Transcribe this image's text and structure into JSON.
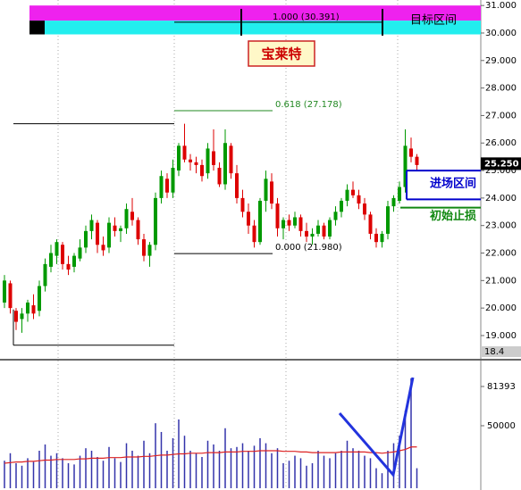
{
  "chart_data": {
    "type": "candlestick",
    "title": "宝莱特",
    "ylim": [
      18.22,
      31.2
    ],
    "yticks": [
      {
        "value": 19,
        "label": "19.000"
      },
      {
        "value": 20,
        "label": "20.000"
      },
      {
        "value": 21,
        "label": "21.000"
      },
      {
        "value": 22,
        "label": "22.000"
      },
      {
        "value": 23,
        "label": "23.000"
      },
      {
        "value": 24,
        "label": "24.000"
      },
      {
        "value": 25,
        "label": "25.000"
      },
      {
        "value": 26,
        "label": "26.000"
      },
      {
        "value": 27,
        "label": "27.000"
      },
      {
        "value": 28,
        "label": "28.000"
      },
      {
        "value": 29,
        "label": "29.000"
      },
      {
        "value": 30,
        "label": "30.000"
      },
      {
        "value": 31,
        "label": "31.000"
      }
    ],
    "up_color": "#009900",
    "down_color": "#dd0000",
    "candles": [
      [
        20.2,
        21.2,
        20.0,
        21.0
      ],
      [
        20.9,
        21.0,
        19.8,
        20.0
      ],
      [
        19.9,
        20.0,
        19.2,
        19.5
      ],
      [
        19.6,
        20.0,
        19.1,
        19.8
      ],
      [
        19.8,
        20.3,
        19.5,
        20.2
      ],
      [
        20.1,
        20.5,
        19.6,
        19.8
      ],
      [
        19.9,
        21.0,
        19.7,
        20.8
      ],
      [
        20.8,
        21.8,
        20.6,
        21.6
      ],
      [
        21.5,
        22.3,
        21.3,
        22.0
      ],
      [
        21.9,
        22.5,
        21.6,
        22.4
      ],
      [
        22.3,
        22.4,
        21.4,
        21.6
      ],
      [
        21.6,
        21.9,
        21.2,
        21.4
      ],
      [
        21.5,
        22.0,
        21.3,
        21.9
      ],
      [
        21.8,
        22.5,
        21.7,
        22.2
      ],
      [
        22.2,
        23.0,
        22.0,
        22.8
      ],
      [
        22.8,
        23.4,
        22.5,
        23.2
      ],
      [
        23.1,
        23.2,
        22.0,
        22.3
      ],
      [
        22.3,
        22.6,
        21.9,
        22.1
      ],
      [
        22.2,
        23.3,
        22.0,
        23.1
      ],
      [
        23.0,
        23.3,
        22.6,
        22.8
      ],
      [
        22.8,
        23.0,
        22.4,
        22.9
      ],
      [
        22.9,
        23.8,
        22.7,
        23.6
      ],
      [
        23.5,
        24.0,
        23.0,
        23.2
      ],
      [
        23.2,
        23.3,
        22.3,
        22.5
      ],
      [
        22.5,
        22.7,
        21.7,
        21.9
      ],
      [
        21.9,
        22.4,
        21.5,
        22.3
      ],
      [
        22.3,
        24.2,
        22.1,
        24.0
      ],
      [
        24.0,
        25.0,
        23.8,
        24.8
      ],
      [
        24.7,
        24.9,
        24.0,
        24.2
      ],
      [
        24.2,
        25.4,
        24.0,
        25.1
      ],
      [
        25.0,
        26.0,
        24.8,
        25.9
      ],
      [
        25.9,
        26.7,
        25.3,
        25.4
      ],
      [
        25.4,
        25.6,
        25.0,
        25.3
      ],
      [
        25.3,
        25.5,
        24.9,
        25.2
      ],
      [
        25.2,
        25.4,
        24.6,
        24.8
      ],
      [
        24.9,
        26.0,
        24.7,
        25.8
      ],
      [
        25.7,
        26.5,
        25.0,
        25.2
      ],
      [
        25.1,
        25.3,
        24.4,
        24.5
      ],
      [
        24.5,
        26.5,
        24.3,
        26.0
      ],
      [
        25.9,
        26.0,
        24.7,
        24.9
      ],
      [
        24.9,
        25.2,
        23.8,
        24.0
      ],
      [
        24.0,
        24.3,
        23.3,
        23.5
      ],
      [
        23.5,
        23.8,
        22.7,
        23.0
      ],
      [
        23.0,
        23.2,
        22.2,
        22.4
      ],
      [
        22.4,
        24.0,
        22.3,
        23.9
      ],
      [
        23.9,
        25.0,
        23.5,
        24.7
      ],
      [
        24.6,
        24.9,
        23.6,
        23.8
      ],
      [
        23.8,
        24.0,
        22.6,
        22.9
      ],
      [
        22.9,
        23.3,
        22.5,
        23.2
      ],
      [
        23.2,
        23.4,
        22.8,
        23.0
      ],
      [
        23.0,
        23.5,
        22.9,
        23.3
      ],
      [
        23.3,
        23.4,
        22.6,
        22.8
      ],
      [
        22.8,
        23.1,
        22.4,
        22.6
      ],
      [
        22.6,
        22.9,
        22.3,
        22.7
      ],
      [
        22.7,
        23.2,
        22.6,
        23.0
      ],
      [
        23.0,
        23.1,
        22.5,
        22.6
      ],
      [
        22.6,
        23.3,
        22.5,
        23.2
      ],
      [
        23.2,
        23.7,
        23.0,
        23.5
      ],
      [
        23.5,
        24.0,
        23.3,
        23.9
      ],
      [
        23.9,
        24.5,
        23.7,
        24.3
      ],
      [
        24.3,
        24.6,
        24.0,
        24.1
      ],
      [
        24.1,
        24.3,
        23.6,
        23.8
      ],
      [
        23.8,
        24.0,
        23.2,
        23.4
      ],
      [
        23.4,
        23.5,
        22.5,
        22.7
      ],
      [
        22.7,
        22.9,
        22.2,
        22.4
      ],
      [
        22.4,
        22.8,
        22.2,
        22.7
      ],
      [
        22.7,
        23.9,
        22.5,
        23.7
      ],
      [
        23.7,
        24.1,
        23.5,
        24.0
      ],
      [
        23.9,
        24.6,
        23.8,
        24.4
      ],
      [
        24.4,
        26.5,
        24.2,
        25.9
      ],
      [
        25.8,
        26.2,
        25.3,
        25.5
      ],
      [
        25.5,
        25.6,
        25.0,
        25.2
      ]
    ],
    "last_price": 25.25,
    "last_price_label": "25.250",
    "bottom_label": "18.4",
    "target_zone": {
      "label": "目标区间",
      "top": 31.0,
      "mid": 30.45,
      "bottom": 29.95
    },
    "fib_levels": [
      {
        "value": 30.391,
        "label": "1.000 (30.391)",
        "color": "#000000"
      },
      {
        "value": 27.178,
        "label": "0.618 (27.178)",
        "color": "#228822"
      },
      {
        "value": 21.98,
        "label": "0.000 (21.980)",
        "color": "#000000"
      }
    ],
    "reference_lines": [
      26.7,
      18.65
    ],
    "entry_zone": {
      "label": "进场区间",
      "top": 25.0,
      "bottom": 23.95,
      "color": "#0000cc"
    },
    "stop_loss": {
      "label": "初始止损",
      "value": 23.65,
      "color": "#118811"
    },
    "volume": {
      "vlim": [
        0,
        101400
      ],
      "vticks": [
        {
          "value": 81393,
          "label": "81393"
        },
        {
          "value": 50000,
          "label": "50000"
        }
      ],
      "color": "#3333aa",
      "ma_color": "#dd2222",
      "values": [
        22000,
        28000,
        20000,
        18000,
        24000,
        21000,
        30000,
        35000,
        26000,
        28000,
        24000,
        20000,
        19000,
        26000,
        32000,
        30000,
        25000,
        22000,
        33000,
        24000,
        21000,
        36000,
        30000,
        26000,
        38000,
        28000,
        52000,
        45000,
        30000,
        40000,
        55000,
        42000,
        30000,
        28000,
        25000,
        38000,
        35000,
        30000,
        48000,
        32000,
        33000,
        36000,
        30000,
        34000,
        40000,
        36000,
        28000,
        32000,
        20000,
        22000,
        26000,
        24000,
        18000,
        20000,
        30000,
        26000,
        24000,
        28000,
        30000,
        38000,
        32000,
        30000,
        26000,
        24000,
        16000,
        12000,
        30000,
        36000,
        42000,
        62000,
        88000,
        16000
      ],
      "ma": [
        20000,
        20500,
        21000,
        21000,
        21500,
        21500,
        22000,
        22500,
        22500,
        23000,
        23000,
        23000,
        23000,
        23500,
        23500,
        24000,
        24000,
        24000,
        24500,
        24500,
        24500,
        25000,
        25000,
        25000,
        25500,
        25500,
        26000,
        26500,
        26500,
        27000,
        27500,
        27500,
        28000,
        28000,
        28000,
        28500,
        28500,
        28500,
        29000,
        29000,
        29000,
        29500,
        29500,
        29500,
        30000,
        30000,
        30000,
        30000,
        29500,
        29500,
        29500,
        29000,
        29000,
        28500,
        28500,
        28500,
        28500,
        28500,
        29000,
        29000,
        29000,
        29000,
        29000,
        28500,
        28500,
        28000,
        28500,
        29000,
        30000,
        31000,
        33000,
        33000
      ]
    }
  }
}
